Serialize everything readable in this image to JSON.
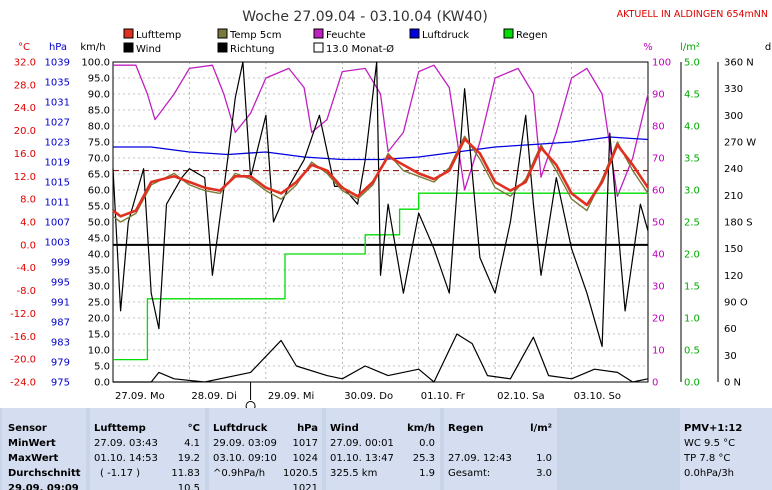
{
  "header": {
    "title": "Woche 27.09.04 - 03.10.04 (KW40)",
    "current_label": "AKTUELL IN ALDINGEN 654mNN",
    "current_color": "#e00000"
  },
  "legend": [
    {
      "label": "Lufttemp",
      "color": "#e03020",
      "style": "fill"
    },
    {
      "label": "Temp 5cm",
      "color": "#7a7a3a",
      "style": "fill"
    },
    {
      "label": "Feuchte",
      "color": "#c020c0",
      "style": "fill"
    },
    {
      "label": "Luftdruck",
      "color": "#0000e0",
      "style": "fill"
    },
    {
      "label": "Regen",
      "color": "#00dd00",
      "style": "fill"
    },
    {
      "label": "Wind",
      "color": "#000000",
      "style": "fill"
    },
    {
      "label": "Richtung",
      "color": "#000000",
      "style": "fill"
    },
    {
      "label": "13.0 Monat-Ø",
      "color": "#ffffff",
      "style": "box"
    }
  ],
  "axis_units": {
    "temp": "°C",
    "pressure": "hPa",
    "wind": "km/h",
    "humidity": "%",
    "rain": "l/m²",
    "direction": "d"
  },
  "chart_data": {
    "type": "line",
    "title": "Woche 27.09.04 - 03.10.04 (KW40)",
    "x_categories": [
      "27.09. Mo",
      "28.09. Di",
      "29.09. Mi",
      "30.09. Do",
      "01.10. Fr",
      "02.10. Sa",
      "03.10. So"
    ],
    "axes": {
      "temp": {
        "label": "°C",
        "range": [
          -24,
          32
        ],
        "ticks": [
          "32.0",
          "28.0",
          "24.0",
          "20.0",
          "16.0",
          "12.0",
          "8.0",
          "4.0",
          "0.0",
          "-4.0",
          "-8.0",
          "-12.0",
          "-16.0",
          "-20.0",
          "-24.0"
        ]
      },
      "pressure": {
        "label": "hPa",
        "range": [
          975,
          1039
        ],
        "ticks": [
          "1039",
          "1035",
          "1031",
          "1027",
          "1023",
          "1019",
          "1015",
          "1011",
          "1007",
          "1003",
          "999",
          "995",
          "991",
          "987",
          "983",
          "979",
          "975"
        ]
      },
      "wind": {
        "label": "km/h",
        "range": [
          0,
          100
        ],
        "ticks": [
          "100.0",
          "95.0",
          "90.0",
          "85.0",
          "80.0",
          "75.0",
          "70.0",
          "65.0",
          "60.0",
          "55.0",
          "50.0",
          "45.0",
          "40.0",
          "35.0",
          "30.0",
          "25.0",
          "20.0",
          "15.0",
          "10.0",
          "5.0",
          "0.0"
        ]
      },
      "humidity": {
        "label": "%",
        "range": [
          0,
          100
        ],
        "ticks": [
          "100",
          "90",
          "80",
          "70",
          "60",
          "50",
          "40",
          "30",
          "20",
          "10",
          "0"
        ]
      },
      "rain": {
        "label": "l/m²",
        "range": [
          0,
          5
        ],
        "ticks": [
          "5.0",
          "4.5",
          "4.0",
          "3.5",
          "3.0",
          "2.5",
          "2.0",
          "1.5",
          "1.0",
          "0.5",
          "0.0"
        ]
      },
      "direction": {
        "label": "d",
        "range": [
          0,
          360
        ],
        "ticks": [
          "360 N",
          "330",
          "300",
          "270 W",
          "240",
          "210",
          "180 S",
          "150",
          "120",
          "90 O",
          "60",
          "30",
          "0 N"
        ]
      }
    },
    "monthly_mean_temp": 13.0,
    "series": [
      {
        "name": "Lufttemp",
        "axis": "temp",
        "color": "#e03020",
        "points": [
          [
            0,
            6.0
          ],
          [
            0.1,
            5.0
          ],
          [
            0.3,
            6.0
          ],
          [
            0.5,
            11.0
          ],
          [
            0.8,
            12.0
          ],
          [
            1.0,
            11.0
          ],
          [
            1.2,
            10.0
          ],
          [
            1.4,
            9.5
          ],
          [
            1.6,
            12.0
          ],
          [
            1.8,
            12.0
          ],
          [
            2.0,
            10.0
          ],
          [
            2.2,
            9.0
          ],
          [
            2.4,
            11.0
          ],
          [
            2.6,
            14.0
          ],
          [
            2.8,
            13.0
          ],
          [
            3.0,
            10.0
          ],
          [
            3.2,
            8.5
          ],
          [
            3.4,
            11.0
          ],
          [
            3.6,
            15.5
          ],
          [
            3.8,
            14.0
          ],
          [
            4.0,
            12.5
          ],
          [
            4.2,
            11.5
          ],
          [
            4.4,
            13.0
          ],
          [
            4.6,
            18.5
          ],
          [
            4.8,
            16.0
          ],
          [
            5.0,
            11.0
          ],
          [
            5.2,
            9.5
          ],
          [
            5.4,
            11.0
          ],
          [
            5.6,
            17.0
          ],
          [
            5.8,
            14.0
          ],
          [
            6.0,
            9.0
          ],
          [
            6.2,
            7.0
          ],
          [
            6.4,
            11.0
          ],
          [
            6.6,
            17.5
          ],
          [
            6.8,
            14.0
          ],
          [
            7.0,
            10.0
          ]
        ]
      },
      {
        "name": "Temp 5cm",
        "axis": "temp",
        "color": "#7a7a3a",
        "points": [
          [
            0,
            5.0
          ],
          [
            0.1,
            4.0
          ],
          [
            0.3,
            5.5
          ],
          [
            0.5,
            10.5
          ],
          [
            0.8,
            12.5
          ],
          [
            1.0,
            10.5
          ],
          [
            1.2,
            9.5
          ],
          [
            1.4,
            9.0
          ],
          [
            1.6,
            12.5
          ],
          [
            1.8,
            11.5
          ],
          [
            2.0,
            9.5
          ],
          [
            2.2,
            8.0
          ],
          [
            2.4,
            10.5
          ],
          [
            2.6,
            14.5
          ],
          [
            2.8,
            12.5
          ],
          [
            3.0,
            9.5
          ],
          [
            3.2,
            8.0
          ],
          [
            3.4,
            10.5
          ],
          [
            3.6,
            16.0
          ],
          [
            3.8,
            13.0
          ],
          [
            4.0,
            12.0
          ],
          [
            4.2,
            11.0
          ],
          [
            4.4,
            13.5
          ],
          [
            4.6,
            19.0
          ],
          [
            4.8,
            15.0
          ],
          [
            5.0,
            10.0
          ],
          [
            5.2,
            8.5
          ],
          [
            5.4,
            11.5
          ],
          [
            5.6,
            17.5
          ],
          [
            5.8,
            13.0
          ],
          [
            6.0,
            8.0
          ],
          [
            6.2,
            6.0
          ],
          [
            6.4,
            11.5
          ],
          [
            6.6,
            18.0
          ],
          [
            6.8,
            13.0
          ],
          [
            7.0,
            9.0
          ]
        ]
      },
      {
        "name": "Feuchte",
        "axis": "humidity",
        "color": "#c020c0",
        "points": [
          [
            0,
            99
          ],
          [
            0.3,
            99
          ],
          [
            0.45,
            90
          ],
          [
            0.55,
            82
          ],
          [
            0.8,
            90
          ],
          [
            1.0,
            98
          ],
          [
            1.3,
            99
          ],
          [
            1.45,
            90
          ],
          [
            1.6,
            78
          ],
          [
            1.8,
            84
          ],
          [
            2.0,
            95
          ],
          [
            2.3,
            98
          ],
          [
            2.5,
            92
          ],
          [
            2.6,
            78
          ],
          [
            2.8,
            82
          ],
          [
            3.0,
            97
          ],
          [
            3.3,
            98
          ],
          [
            3.5,
            90
          ],
          [
            3.6,
            72
          ],
          [
            3.8,
            78
          ],
          [
            4.0,
            97
          ],
          [
            4.2,
            99
          ],
          [
            4.4,
            92
          ],
          [
            4.6,
            60
          ],
          [
            4.8,
            75
          ],
          [
            5.0,
            95
          ],
          [
            5.3,
            98
          ],
          [
            5.5,
            90
          ],
          [
            5.6,
            64
          ],
          [
            5.8,
            78
          ],
          [
            6.0,
            95
          ],
          [
            6.2,
            98
          ],
          [
            6.4,
            90
          ],
          [
            6.6,
            58
          ],
          [
            6.8,
            70
          ],
          [
            7.0,
            90
          ]
        ]
      },
      {
        "name": "Luftdruck",
        "axis": "pressure",
        "color": "#0000e0",
        "points": [
          [
            0,
            1022
          ],
          [
            0.5,
            1022
          ],
          [
            1.0,
            1021
          ],
          [
            1.5,
            1020.5
          ],
          [
            2.0,
            1021
          ],
          [
            2.5,
            1020
          ],
          [
            3.0,
            1019.5
          ],
          [
            3.5,
            1019.5
          ],
          [
            4.0,
            1020
          ],
          [
            4.5,
            1021
          ],
          [
            5.0,
            1022
          ],
          [
            5.5,
            1022.5
          ],
          [
            6.0,
            1023
          ],
          [
            6.5,
            1024
          ],
          [
            7.0,
            1023.5
          ]
        ]
      },
      {
        "name": "Regen",
        "axis": "rain",
        "color": "#00dd00",
        "points": [
          [
            0,
            0.35
          ],
          [
            0.45,
            0.35
          ],
          [
            0.45,
            1.3
          ],
          [
            2.25,
            1.3
          ],
          [
            2.25,
            2.0
          ],
          [
            3.3,
            2.0
          ],
          [
            3.3,
            2.3
          ],
          [
            3.75,
            2.3
          ],
          [
            3.75,
            2.7
          ],
          [
            4.0,
            2.7
          ],
          [
            4.0,
            2.95
          ],
          [
            7.0,
            2.95
          ]
        ]
      },
      {
        "name": "Wind",
        "axis": "wind",
        "color": "#000000",
        "points": [
          [
            0,
            0
          ],
          [
            0.5,
            0
          ],
          [
            0.6,
            3
          ],
          [
            0.8,
            1
          ],
          [
            1.2,
            0
          ],
          [
            1.8,
            3
          ],
          [
            2.2,
            13
          ],
          [
            2.4,
            5
          ],
          [
            2.8,
            2
          ],
          [
            3.0,
            1
          ],
          [
            3.3,
            5
          ],
          [
            3.6,
            2
          ],
          [
            4.0,
            4
          ],
          [
            4.2,
            0
          ],
          [
            4.5,
            15
          ],
          [
            4.7,
            12
          ],
          [
            4.9,
            2
          ],
          [
            5.2,
            1
          ],
          [
            5.5,
            14
          ],
          [
            5.7,
            2
          ],
          [
            6.0,
            1
          ],
          [
            6.3,
            4
          ],
          [
            6.6,
            3
          ],
          [
            6.8,
            0
          ],
          [
            7.0,
            1
          ]
        ]
      },
      {
        "name": "Richtung",
        "axis": "direction",
        "color": "#000000",
        "points": [
          [
            0,
            240
          ],
          [
            0.1,
            80
          ],
          [
            0.2,
            180
          ],
          [
            0.4,
            240
          ],
          [
            0.5,
            100
          ],
          [
            0.6,
            60
          ],
          [
            0.7,
            200
          ],
          [
            0.9,
            230
          ],
          [
            1.0,
            240
          ],
          [
            1.2,
            230
          ],
          [
            1.3,
            120
          ],
          [
            1.5,
            250
          ],
          [
            1.6,
            320
          ],
          [
            1.7,
            360
          ],
          [
            1.8,
            230
          ],
          [
            2.0,
            300
          ],
          [
            2.1,
            180
          ],
          [
            2.3,
            220
          ],
          [
            2.5,
            250
          ],
          [
            2.7,
            300
          ],
          [
            2.9,
            220
          ],
          [
            3.0,
            220
          ],
          [
            3.2,
            200
          ],
          [
            3.3,
            250
          ],
          [
            3.45,
            360
          ],
          [
            3.5,
            120
          ],
          [
            3.6,
            200
          ],
          [
            3.8,
            100
          ],
          [
            4.0,
            190
          ],
          [
            4.2,
            150
          ],
          [
            4.4,
            100
          ],
          [
            4.6,
            330
          ],
          [
            4.8,
            140
          ],
          [
            5.0,
            100
          ],
          [
            5.2,
            180
          ],
          [
            5.4,
            300
          ],
          [
            5.5,
            200
          ],
          [
            5.6,
            120
          ],
          [
            5.8,
            230
          ],
          [
            6.0,
            150
          ],
          [
            6.2,
            100
          ],
          [
            6.4,
            40
          ],
          [
            6.5,
            280
          ],
          [
            6.7,
            80
          ],
          [
            6.9,
            200
          ],
          [
            7.0,
            170
          ]
        ]
      }
    ]
  },
  "stats": {
    "sensor": {
      "head": "Sensor",
      "rows": [
        "MinWert",
        "MaxWert",
        "Durchschnitt",
        "29.09. 09:09"
      ]
    },
    "lufttemp": {
      "head": "Lufttemp",
      "unit": "°C",
      "rows": [
        [
          "27.09.  03:43",
          "4.1"
        ],
        [
          "01.10.  14:53",
          "19.2"
        ],
        [
          "( -1.17 )",
          "11.83"
        ],
        [
          "",
          "10.5"
        ]
      ]
    },
    "luftdruck": {
      "head": "Luftdruck",
      "unit": "hPa",
      "rows": [
        [
          "29.09.  03:09",
          "1017"
        ],
        [
          "03.10.  09:10",
          "1024"
        ],
        [
          "^0.9hPa/h",
          "1020.5"
        ],
        [
          "",
          "1021"
        ]
      ]
    },
    "wind": {
      "head": "Wind",
      "unit": "km/h",
      "rows": [
        [
          "27.09.  00:01",
          "0.0"
        ],
        [
          "01.10.  13:47",
          "25.3"
        ],
        [
          "325.5 km",
          "1.9"
        ],
        [
          "",
          ""
        ]
      ]
    },
    "regen": {
      "head": "Regen",
      "unit": "l/m²",
      "rows": [
        [
          "",
          ""
        ],
        [
          "27.09.  12:43",
          "1.0"
        ],
        [
          "Gesamt:",
          "3.0"
        ],
        [
          "",
          ""
        ]
      ]
    },
    "pmv": {
      "head": "PMV+1:12",
      "rows": [
        "WC 9.5 °C",
        "TP 7.8 °C",
        "0.0hPa/3h",
        ""
      ]
    }
  }
}
